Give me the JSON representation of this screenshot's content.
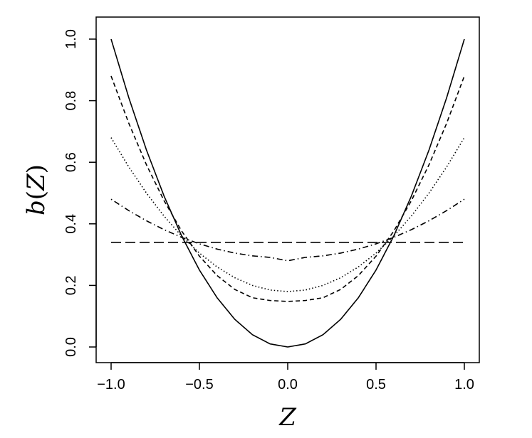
{
  "chart_data": {
    "type": "line",
    "title": "",
    "xlabel": "Z",
    "ylabel_fn": "b",
    "ylabel_paren_open": "(",
    "ylabel_var": "Z",
    "ylabel_paren_close": ")",
    "xlim": [
      -1.0,
      1.0
    ],
    "ylim": [
      0.0,
      1.0
    ],
    "xticks": [
      -1.0,
      -0.5,
      0.0,
      0.5,
      1.0
    ],
    "xtick_labels": [
      "−1.0",
      "−0.5",
      "0.0",
      "0.5",
      "1.0"
    ],
    "yticks": [
      0.0,
      0.2,
      0.4,
      0.6,
      0.8,
      1.0
    ],
    "ytick_labels": [
      "0.0",
      "0.2",
      "0.4",
      "0.6",
      "0.8",
      "1.0"
    ],
    "grid": false,
    "legend": "none",
    "line_color": "#000000",
    "x": [
      -1.0,
      -0.9,
      -0.8,
      -0.7,
      -0.6,
      -0.5,
      -0.4,
      -0.3,
      -0.2,
      -0.1,
      0.0,
      0.1,
      0.2,
      0.3,
      0.4,
      0.5,
      0.6,
      0.7,
      0.8,
      0.9,
      1.0
    ],
    "series": [
      {
        "line_style": "solid",
        "values": [
          1.0,
          0.81,
          0.64,
          0.49,
          0.36,
          0.25,
          0.16,
          0.09,
          0.04,
          0.01,
          0.0,
          0.01,
          0.04,
          0.09,
          0.16,
          0.25,
          0.36,
          0.49,
          0.64,
          0.81,
          1.0
        ]
      },
      {
        "line_style": "short-dashed",
        "values": [
          0.88,
          0.727,
          0.592,
          0.475,
          0.376,
          0.295,
          0.232,
          0.187,
          0.16,
          0.151,
          0.148,
          0.151,
          0.16,
          0.187,
          0.232,
          0.295,
          0.376,
          0.475,
          0.592,
          0.727,
          0.88
        ]
      },
      {
        "line_style": "dotted",
        "values": [
          0.68,
          0.585,
          0.5,
          0.425,
          0.36,
          0.305,
          0.26,
          0.225,
          0.2,
          0.185,
          0.18,
          0.185,
          0.2,
          0.225,
          0.26,
          0.305,
          0.36,
          0.425,
          0.5,
          0.585,
          0.68
        ]
      },
      {
        "line_style": "dot-dash",
        "values": [
          0.48,
          0.443,
          0.41,
          0.381,
          0.356,
          0.335,
          0.318,
          0.305,
          0.296,
          0.291,
          0.28,
          0.291,
          0.296,
          0.305,
          0.318,
          0.335,
          0.356,
          0.381,
          0.41,
          0.443,
          0.48
        ]
      },
      {
        "line_style": "long-dashed",
        "values": [
          0.34,
          0.34,
          0.34,
          0.34,
          0.34,
          0.34,
          0.34,
          0.34,
          0.34,
          0.34,
          0.34,
          0.34,
          0.34,
          0.34,
          0.34,
          0.34,
          0.34,
          0.34,
          0.34,
          0.34,
          0.34
        ]
      }
    ]
  }
}
